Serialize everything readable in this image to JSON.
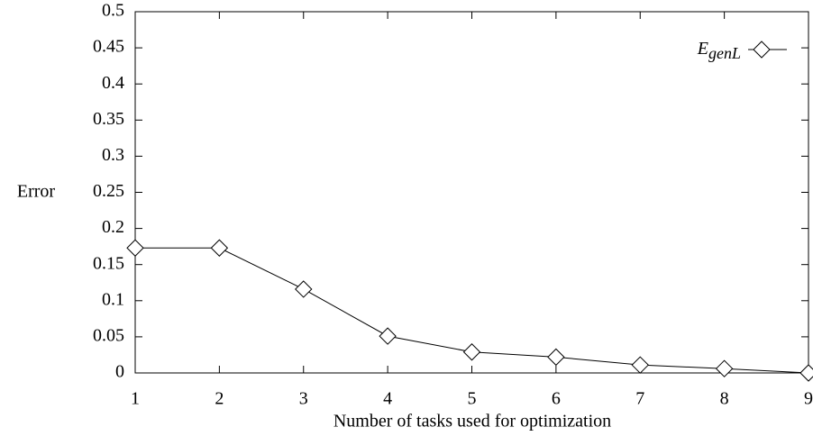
{
  "chart_data": {
    "type": "line",
    "xlabel": "Number of tasks used for optimization",
    "ylabel": "Error",
    "x": [
      1,
      2,
      3,
      4,
      5,
      6,
      7,
      8,
      9
    ],
    "series": [
      {
        "name": "EgenL",
        "color": "#000000",
        "values": [
          0.173,
          0.173,
          0.116,
          0.051,
          0.029,
          0.022,
          0.011,
          0.006,
          0.0
        ]
      }
    ],
    "xlim": [
      1,
      9
    ],
    "xticks": [
      1,
      2,
      3,
      4,
      5,
      6,
      7,
      8,
      9
    ],
    "ylim": [
      0,
      0.5
    ],
    "yticks": [
      0,
      0.05,
      0.1,
      0.15,
      0.2,
      0.25,
      0.3,
      0.35,
      0.4,
      0.45,
      0.5
    ],
    "legend": "top-right",
    "grid": false
  }
}
